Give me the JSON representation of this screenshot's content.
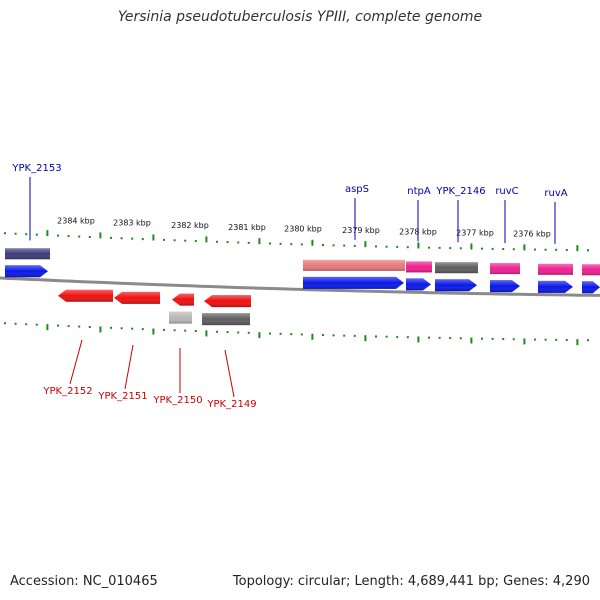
{
  "title": "Yersinia pseudotuberculosis YPIII, complete genome",
  "footer": {
    "accession": "Accession: NC_010465",
    "summary": "Topology: circular; Length: 4,689,441 bp; Genes: 4,290"
  },
  "colors": {
    "backbone": "#8a8a8a",
    "tick": "#1e8a1e",
    "top_label": "#0000b0",
    "bottom_label": "#cc0000",
    "blue_cds": "#0a18e8",
    "navy_cds": "#3f3b7a",
    "salmon_cds": "#e87878",
    "pink_cds": "#ee2090",
    "gray_cds": "#5e5e5e",
    "lightgray_cds": "#b8b8b8",
    "red_cds": "#ee1010"
  },
  "scale_labels": [
    "2384 kbp",
    "2383 kbp",
    "2382 kbp",
    "2381 kbp",
    "2380 kbp",
    "2379 kbp",
    "2378 kbp",
    "2377 kbp",
    "2376 kbp"
  ],
  "top_genes": [
    {
      "name": "YPK_2153",
      "color": "navy_cds",
      "companion": "blue_cds"
    },
    {
      "name": "aspS",
      "color": "salmon_cds",
      "companion": "blue_cds"
    },
    {
      "name": "ntpA",
      "color": "pink_cds",
      "companion": "blue_cds"
    },
    {
      "name": "YPK_2146",
      "color": "gray_cds",
      "companion": "blue_cds"
    },
    {
      "name": "ruvC",
      "color": "pink_cds",
      "companion": "blue_cds"
    },
    {
      "name": "ruvA",
      "color": "pink_cds",
      "companion": "blue_cds"
    }
  ],
  "bottom_genes": [
    {
      "name": "YPK_2152",
      "color": "red_cds"
    },
    {
      "name": "YPK_2151",
      "color": "red_cds"
    },
    {
      "name": "YPK_2150",
      "color": "red_cds",
      "companion": "lightgray_cds"
    },
    {
      "name": "YPK_2149",
      "color": "red_cds",
      "companion": "gray_cds"
    }
  ]
}
